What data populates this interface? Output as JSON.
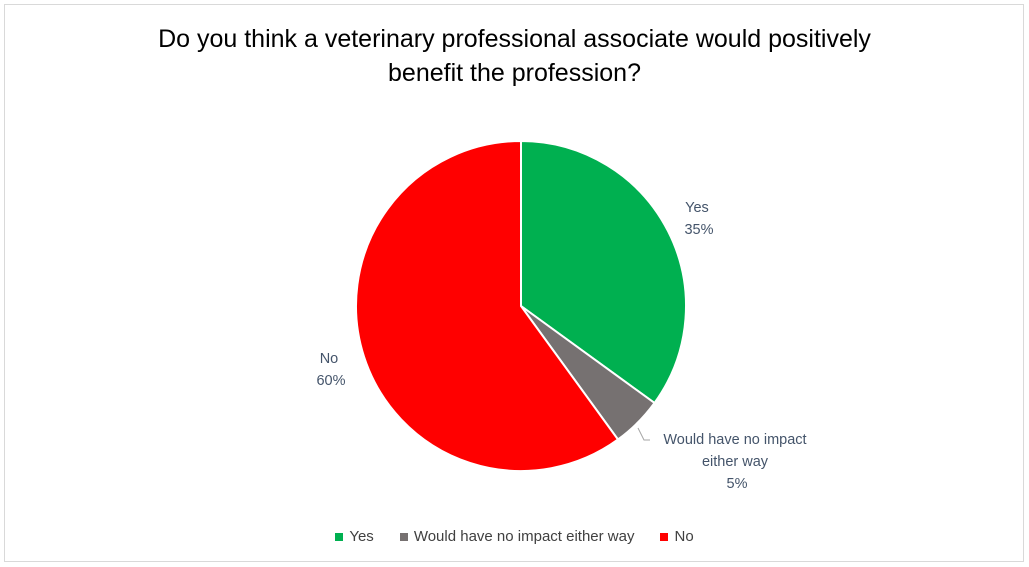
{
  "chart_data": {
    "type": "pie",
    "title_lines": [
      "Do you think a veterinary professional associate would positively",
      "benefit the profession?"
    ],
    "slices": [
      {
        "name": "Yes",
        "value": 35,
        "label": "35%",
        "color": "#00b050"
      },
      {
        "name": "Would have no impact either way",
        "value": 5,
        "label": "5%",
        "color": "#767171"
      },
      {
        "name": "No",
        "value": 60,
        "label": "60%",
        "color": "#ff0000"
      }
    ],
    "label_lines": {
      "yes": [
        "Yes",
        "35%"
      ],
      "neutral": [
        "Would have no impact",
        "either way",
        "5%"
      ],
      "no": [
        "No",
        "60%"
      ]
    },
    "legend": [
      "Yes",
      "Would have no impact either way",
      "No"
    ],
    "legend_position": "bottom"
  }
}
